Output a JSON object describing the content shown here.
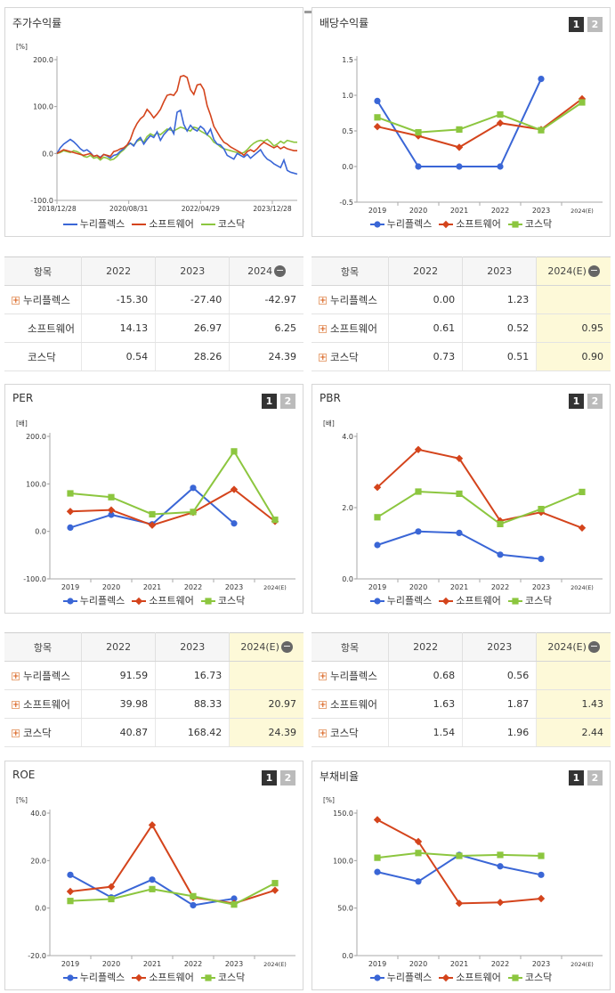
{
  "colors": {
    "nuri": "#3a66d6",
    "soft": "#d4441c",
    "kosdaq": "#8cc63f"
  },
  "legend": [
    "누리플렉스",
    "소프트웨어",
    "코스닥"
  ],
  "button_labels": [
    "1",
    "2"
  ],
  "price": {
    "title": "주가수익률",
    "chart_data": {
      "type": "line",
      "title": "주가수익률",
      "unit": "[%]",
      "ylim": [
        -100,
        200
      ],
      "yticks": [
        "200.0",
        "100.0",
        "0.0",
        "-100.0"
      ],
      "xticks": [
        "2018/12/28",
        "2020/08/31",
        "2022/04/29",
        "2023/12/28"
      ],
      "series": [
        {
          "name": "누리플렉스",
          "values": [
            0,
            12,
            20,
            25,
            30,
            25,
            18,
            10,
            5,
            8,
            2,
            -6,
            -4,
            -8,
            -2,
            -5,
            -10,
            -4,
            -2,
            5,
            10,
            18,
            22,
            16,
            28,
            34,
            20,
            30,
            38,
            34,
            46,
            28,
            40,
            48,
            55,
            42,
            88,
            92,
            62,
            48,
            60,
            52,
            48,
            58,
            52,
            40,
            52,
            30,
            20,
            18,
            10,
            -4,
            -8,
            -12,
            0,
            -4,
            -8,
            -2,
            -10,
            -4,
            2,
            8,
            -4,
            -12,
            -16,
            -22,
            -26,
            -30,
            -14,
            -36,
            -40,
            -42,
            -44
          ]
        },
        {
          "name": "소프트웨어",
          "values": [
            0,
            4,
            8,
            6,
            4,
            2,
            0,
            -2,
            -4,
            -2,
            0,
            -6,
            -4,
            -10,
            -2,
            -4,
            -6,
            4,
            6,
            10,
            12,
            18,
            30,
            50,
            64,
            74,
            80,
            94,
            86,
            76,
            84,
            94,
            110,
            124,
            126,
            124,
            134,
            164,
            166,
            162,
            136,
            126,
            146,
            148,
            136,
            102,
            82,
            58,
            46,
            34,
            24,
            20,
            14,
            10,
            6,
            2,
            -4,
            4,
            8,
            4,
            10,
            18,
            24,
            20,
            16,
            12,
            16,
            10,
            14,
            10,
            8,
            6,
            6
          ]
        },
        {
          "name": "코스닥",
          "values": [
            0,
            2,
            6,
            4,
            2,
            6,
            4,
            0,
            -6,
            -8,
            -4,
            -10,
            -8,
            -14,
            -8,
            -10,
            -14,
            -12,
            -6,
            2,
            8,
            16,
            22,
            18,
            26,
            30,
            24,
            36,
            42,
            38,
            44,
            40,
            46,
            52,
            50,
            48,
            52,
            56,
            54,
            50,
            48,
            56,
            54,
            48,
            44,
            40,
            34,
            24,
            20,
            14,
            10,
            8,
            6,
            4,
            2,
            0,
            2,
            8,
            16,
            22,
            26,
            28,
            26,
            30,
            24,
            16,
            20,
            26,
            22,
            28,
            26,
            24,
            24
          ]
        }
      ]
    },
    "table": {
      "head": [
        "항목",
        "2022",
        "2023",
        "2024"
      ],
      "rows": [
        {
          "name": "누리플렉스",
          "plus": true,
          "v": [
            "-15.30",
            "-27.40",
            "-42.97"
          ]
        },
        {
          "name": "소프트웨어",
          "plus": false,
          "v": [
            "14.13",
            "26.97",
            "6.25"
          ]
        },
        {
          "name": "코스닥",
          "plus": false,
          "v": [
            "0.54",
            "28.26",
            "24.39"
          ]
        }
      ]
    }
  },
  "dividend": {
    "title": "배당수익률",
    "chart_data": {
      "type": "line",
      "title": "배당수익률",
      "ylim": [
        -0.5,
        1.5
      ],
      "yticks": [
        "1.5",
        "1.0",
        "0.5",
        "0.0",
        "-0.5"
      ],
      "categories": [
        "2019",
        "2020",
        "2021",
        "2022",
        "2023",
        "2024(E)"
      ],
      "series": [
        {
          "name": "누리플렉스",
          "values": [
            0.92,
            0.0,
            0.0,
            0.0,
            1.23,
            null
          ]
        },
        {
          "name": "소프트웨어",
          "values": [
            0.56,
            0.43,
            0.27,
            0.61,
            0.52,
            0.95
          ]
        },
        {
          "name": "코스닥",
          "values": [
            0.69,
            0.48,
            0.52,
            0.73,
            0.51,
            0.9
          ]
        }
      ]
    },
    "table": {
      "head": [
        "항목",
        "2022",
        "2023",
        "2024(E)"
      ],
      "rows": [
        {
          "name": "누리플렉스",
          "plus": true,
          "v": [
            "0.00",
            "1.23",
            ""
          ]
        },
        {
          "name": "소프트웨어",
          "plus": true,
          "v": [
            "0.61",
            "0.52",
            "0.95"
          ]
        },
        {
          "name": "코스닥",
          "plus": true,
          "v": [
            "0.73",
            "0.51",
            "0.90"
          ]
        }
      ]
    }
  },
  "per": {
    "title": "PER",
    "chart_data": {
      "type": "line",
      "title": "PER",
      "unit": "[배]",
      "ylim": [
        -100,
        200
      ],
      "yticks": [
        "200.0",
        "100.0",
        "0.0",
        "-100.0"
      ],
      "categories": [
        "2019",
        "2020",
        "2021",
        "2022",
        "2023",
        "2024(E)"
      ],
      "series": [
        {
          "name": "누리플렉스",
          "values": [
            8,
            35,
            15,
            91.59,
            16.73,
            null
          ]
        },
        {
          "name": "소프트웨어",
          "values": [
            42,
            45,
            13,
            39.98,
            88.33,
            20.97
          ]
        },
        {
          "name": "코스닥",
          "values": [
            80,
            72,
            36,
            40.87,
            168.42,
            24.39
          ]
        }
      ]
    },
    "table": {
      "head": [
        "항목",
        "2022",
        "2023",
        "2024(E)"
      ],
      "rows": [
        {
          "name": "누리플렉스",
          "plus": true,
          "v": [
            "91.59",
            "16.73",
            ""
          ]
        },
        {
          "name": "소프트웨어",
          "plus": true,
          "v": [
            "39.98",
            "88.33",
            "20.97"
          ]
        },
        {
          "name": "코스닥",
          "plus": true,
          "v": [
            "40.87",
            "168.42",
            "24.39"
          ]
        }
      ]
    }
  },
  "pbr": {
    "title": "PBR",
    "chart_data": {
      "type": "line",
      "title": "PBR",
      "unit": "[배]",
      "ylim": [
        0,
        4
      ],
      "yticks": [
        "4.0",
        "2.0",
        "0.0"
      ],
      "categories": [
        "2019",
        "2020",
        "2021",
        "2022",
        "2023",
        "2024(E)"
      ],
      "series": [
        {
          "name": "누리플렉스",
          "values": [
            0.95,
            1.33,
            1.29,
            0.68,
            0.56,
            null
          ]
        },
        {
          "name": "소프트웨어",
          "values": [
            2.57,
            3.63,
            3.38,
            1.63,
            1.87,
            1.43
          ]
        },
        {
          "name": "코스닥",
          "values": [
            1.73,
            2.45,
            2.39,
            1.54,
            1.96,
            2.44
          ]
        }
      ]
    },
    "table": {
      "head": [
        "항목",
        "2022",
        "2023",
        "2024(E)"
      ],
      "rows": [
        {
          "name": "누리플렉스",
          "plus": true,
          "v": [
            "0.68",
            "0.56",
            ""
          ]
        },
        {
          "name": "소프트웨어",
          "plus": true,
          "v": [
            "1.63",
            "1.87",
            "1.43"
          ]
        },
        {
          "name": "코스닥",
          "plus": true,
          "v": [
            "1.54",
            "1.96",
            "2.44"
          ]
        }
      ]
    }
  },
  "roe": {
    "title": "ROE",
    "chart_data": {
      "type": "line",
      "title": "ROE",
      "unit": "[%]",
      "ylim": [
        -20,
        40
      ],
      "yticks": [
        "40.0",
        "20.0",
        "0.0",
        "-20.0"
      ],
      "categories": [
        "2019",
        "2020",
        "2021",
        "2022",
        "2023",
        "2024(E)"
      ],
      "series": [
        {
          "name": "누리플렉스",
          "values": [
            14,
            4.5,
            12,
            1.2,
            4,
            null
          ]
        },
        {
          "name": "소프트웨어",
          "values": [
            7,
            9,
            35,
            4.5,
            2,
            7.5
          ]
        },
        {
          "name": "코스닥",
          "values": [
            3,
            3.8,
            8,
            5,
            1.5,
            10.5
          ]
        }
      ]
    }
  },
  "debt": {
    "title": "부채비율",
    "chart_data": {
      "type": "line",
      "title": "부채비율",
      "unit": "[%]",
      "ylim": [
        0,
        150
      ],
      "yticks": [
        "150.0",
        "100.0",
        "50.0",
        "0.0"
      ],
      "categories": [
        "2019",
        "2020",
        "2021",
        "2022",
        "2023",
        "2024(E)"
      ],
      "series": [
        {
          "name": "누리플렉스",
          "values": [
            88,
            78,
            106,
            94,
            85,
            null
          ]
        },
        {
          "name": "소프트웨어",
          "values": [
            143,
            120,
            55,
            56,
            60,
            null
          ]
        },
        {
          "name": "코스닥",
          "values": [
            103,
            108,
            105,
            106,
            105,
            null
          ]
        }
      ]
    }
  }
}
